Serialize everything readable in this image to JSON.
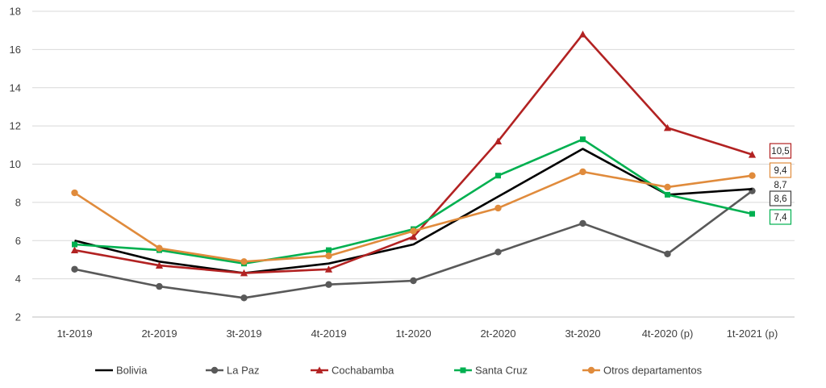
{
  "chart_data": {
    "type": "line",
    "categories": [
      "1t-2019",
      "2t-2019",
      "3t-2019",
      "4t-2019",
      "1t-2020",
      "2t-2020",
      "3t-2020",
      "4t-2020 (p)",
      "1t-2021 (p)"
    ],
    "ylim": [
      2,
      18
    ],
    "yticks": [
      2,
      4,
      6,
      8,
      10,
      12,
      14,
      16,
      18
    ],
    "grid": true,
    "legend": "bottom",
    "series": [
      {
        "name": "Bolivia",
        "color": "#000000",
        "marker": "none",
        "values": [
          6.0,
          4.9,
          4.3,
          4.8,
          5.8,
          8.3,
          10.8,
          8.4,
          8.7
        ]
      },
      {
        "name": "La Paz",
        "color": "#595959",
        "marker": "circle",
        "values": [
          4.5,
          3.6,
          3.0,
          3.7,
          3.9,
          5.4,
          6.9,
          5.3,
          8.6
        ]
      },
      {
        "name": "Cochabamba",
        "color": "#B22222",
        "marker": "triangle",
        "values": [
          5.5,
          4.7,
          4.3,
          4.5,
          6.2,
          11.2,
          16.8,
          11.9,
          10.5
        ]
      },
      {
        "name": "Santa Cruz",
        "color": "#00B050",
        "marker": "square",
        "values": [
          5.8,
          5.5,
          4.8,
          5.5,
          6.6,
          9.4,
          11.3,
          8.4,
          7.4
        ]
      },
      {
        "name": "Otros departamentos",
        "color": "#E08B3C",
        "marker": "circle",
        "values": [
          8.5,
          5.6,
          4.9,
          5.2,
          6.5,
          7.7,
          9.6,
          8.8,
          9.4
        ]
      }
    ],
    "end_labels": [
      {
        "series": "Cochabamba",
        "text": "10,5",
        "boxed": true,
        "border": "#B22222"
      },
      {
        "series": "Otros departamentos",
        "text": "9,4",
        "boxed": true,
        "border": "#E08B3C"
      },
      {
        "series": "Bolivia",
        "text": "8,7",
        "boxed": false,
        "border": ""
      },
      {
        "series": "La Paz",
        "text": "8,6",
        "boxed": true,
        "border": "#404040"
      },
      {
        "series": "Santa Cruz",
        "text": "7,4",
        "boxed": true,
        "border": "#00B050"
      }
    ]
  }
}
